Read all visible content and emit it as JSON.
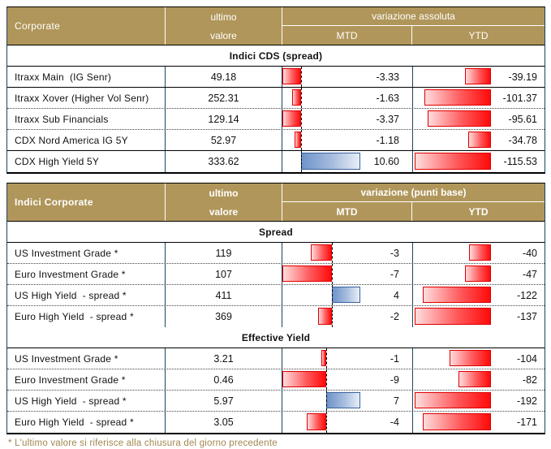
{
  "colors": {
    "header_gold": "#B0965A",
    "divider_teal": "#17455E",
    "bar_red": "#FF0000",
    "bar_red_light": "#FFDCDD",
    "bar_red_border": "#DD0000",
    "bar_blue": "#6F93C9",
    "bar_blue_light": "#E8EEF7",
    "bar_blue_border": "#38619E",
    "footnote_text": "#A18750"
  },
  "table1": {
    "corner_label": "Corporate",
    "last_label_line1": "ultimo",
    "last_label_line2": "valore",
    "variation_label": "variazione assoluta",
    "mtd_label": "MTD",
    "ytd_label": "YTD",
    "section_label": "Indici CDS (spread)",
    "mtd_range": {
      "min": -3.37,
      "max": 10.6
    },
    "ytd_range": {
      "min": -115.53,
      "max": 0
    },
    "rows": [
      {
        "name": "Itraxx Main  (IG Senr)",
        "last": "49.18",
        "mtd": -3.33,
        "mtd_label": "-3.33",
        "ytd": -39.19,
        "ytd_label": "-39.19",
        "sep": "solid"
      },
      {
        "name": "Itraxx Xover (Higher Vol Senr)",
        "last": "252.31",
        "mtd": -1.63,
        "mtd_label": "-1.63",
        "ytd": -101.37,
        "ytd_label": "-101.37",
        "sep": "dotted"
      },
      {
        "name": "Itraxx Sub Financials",
        "last": "129.14",
        "mtd": -3.37,
        "mtd_label": "-3.37",
        "ytd": -95.61,
        "ytd_label": "-95.61",
        "sep": "dotted"
      },
      {
        "name": "CDX Nord America IG 5Y",
        "last": "52.97",
        "mtd": -1.18,
        "mtd_label": "-1.18",
        "ytd": -34.78,
        "ytd_label": "-34.78",
        "sep": "solid"
      },
      {
        "name": "CDX High Yield 5Y",
        "last": "333.62",
        "mtd": 10.6,
        "mtd_label": "10.60",
        "ytd": -115.53,
        "ytd_label": "-115.53",
        "sep": "none"
      }
    ]
  },
  "table2": {
    "corner_label": "Indici Corporate",
    "last_label_line1": "ultimo",
    "last_label_line2": "valore",
    "variation_label": "variazione (punti base)",
    "mtd_label": "MTD",
    "ytd_label": "YTD",
    "sections": [
      {
        "label": "Spread",
        "mtd_range": {
          "min": -7,
          "max": 4
        },
        "ytd_range": {
          "min": -137,
          "max": 0
        },
        "rows": [
          {
            "name": "US Investment Grade *",
            "last": "119",
            "mtd": -3,
            "mtd_label": "-3",
            "ytd": -40,
            "ytd_label": "-40",
            "sep": "dotted"
          },
          {
            "name": "Euro Investment Grade *",
            "last": "107",
            "mtd": -7,
            "mtd_label": "-7",
            "ytd": -47,
            "ytd_label": "-47",
            "sep": "dotted"
          },
          {
            "name": "US High Yield  - spread *",
            "last": "411",
            "mtd": 4,
            "mtd_label": "4",
            "ytd": -122,
            "ytd_label": "-122",
            "sep": "dotted"
          },
          {
            "name": "Euro High Yield  - spread *",
            "last": "369",
            "mtd": -2,
            "mtd_label": "-2",
            "ytd": -137,
            "ytd_label": "-137",
            "sep": "none"
          }
        ]
      },
      {
        "label": "Effective Yield",
        "mtd_range": {
          "min": -9,
          "max": 7
        },
        "ytd_range": {
          "min": -192,
          "max": 0
        },
        "rows": [
          {
            "name": "US Investment Grade *",
            "last": "3.21",
            "mtd": -1,
            "mtd_label": "-1",
            "ytd": -104,
            "ytd_label": "-104",
            "sep": "dotted"
          },
          {
            "name": "Euro Investment Grade *",
            "last": "0.46",
            "mtd": -9,
            "mtd_label": "-9",
            "ytd": -82,
            "ytd_label": "-82",
            "sep": "dotted"
          },
          {
            "name": "US High Yield  - spread *",
            "last": "5.97",
            "mtd": 7,
            "mtd_label": "7",
            "ytd": -192,
            "ytd_label": "-192",
            "sep": "dotted"
          },
          {
            "name": "Euro High Yield  - spread *",
            "last": "3.05",
            "mtd": -4,
            "mtd_label": "-4",
            "ytd": -171,
            "ytd_label": "-171",
            "sep": "none"
          }
        ]
      }
    ]
  },
  "footnote": "* L'ultimo valore si riferisce alla chiusura del giorno precedente",
  "chart_data": [
    {
      "type": "table",
      "title": "Corporate",
      "section": "Indici CDS (spread)",
      "columns": [
        "ultimo valore",
        "variazione assoluta MTD",
        "variazione assoluta YTD"
      ],
      "rows": [
        {
          "name": "Itraxx Main (IG Senr)",
          "ultimo_valore": 49.18,
          "mtd": -3.33,
          "ytd": -39.19
        },
        {
          "name": "Itraxx Xover (Higher Vol Senr)",
          "ultimo_valore": 252.31,
          "mtd": -1.63,
          "ytd": -101.37
        },
        {
          "name": "Itraxx Sub Financials",
          "ultimo_valore": 129.14,
          "mtd": -3.37,
          "ytd": -95.61
        },
        {
          "name": "CDX Nord America IG 5Y",
          "ultimo_valore": 52.97,
          "mtd": -1.18,
          "ytd": -34.78
        },
        {
          "name": "CDX High Yield 5Y",
          "ultimo_valore": 333.62,
          "mtd": 10.6,
          "ytd": -115.53
        }
      ],
      "bar_style": "data-bars: red gradient for negative, blue gradient for positive, dashed zero axis in MTD"
    },
    {
      "type": "table",
      "title": "Indici Corporate",
      "columns": [
        "ultimo valore",
        "variazione (punti base) MTD",
        "variazione (punti base) YTD"
      ],
      "sections": [
        {
          "name": "Spread",
          "rows": [
            {
              "name": "US Investment Grade *",
              "ultimo_valore": 119,
              "mtd": -3,
              "ytd": -40
            },
            {
              "name": "Euro Investment Grade *",
              "ultimo_valore": 107,
              "mtd": -7,
              "ytd": -47
            },
            {
              "name": "US High Yield - spread *",
              "ultimo_valore": 411,
              "mtd": 4,
              "ytd": -122
            },
            {
              "name": "Euro High Yield - spread *",
              "ultimo_valore": 369,
              "mtd": -2,
              "ytd": -137
            }
          ]
        },
        {
          "name": "Effective Yield",
          "rows": [
            {
              "name": "US Investment Grade *",
              "ultimo_valore": 3.21,
              "mtd": -1,
              "ytd": -104
            },
            {
              "name": "Euro Investment Grade *",
              "ultimo_valore": 0.46,
              "mtd": -9,
              "ytd": -82
            },
            {
              "name": "US High Yield - spread *",
              "ultimo_valore": 5.97,
              "mtd": 7,
              "ytd": -192
            },
            {
              "name": "Euro High Yield - spread *",
              "ultimo_valore": 3.05,
              "mtd": -4,
              "ytd": -171
            }
          ]
        }
      ]
    }
  ]
}
